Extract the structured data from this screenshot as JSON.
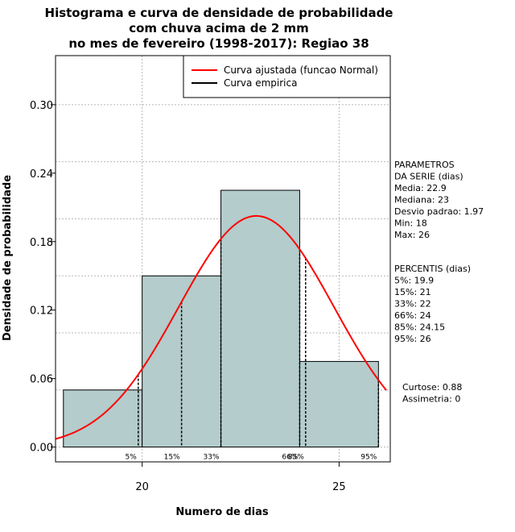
{
  "chart_data": {
    "type": "histogram",
    "title_lines": [
      "Histograma e curva de densidade de probabilidade",
      "com chuva acima de 2 mm",
      "no mes de fevereiro (1998-2017): Regiao 38"
    ],
    "xlabel": "Numero de dias",
    "ylabel": "Densidade de probabilidade",
    "xlim": [
      17.8,
      26.3
    ],
    "ylim": [
      -0.013,
      0.343
    ],
    "x_ticks": [
      20,
      25
    ],
    "y_ticks": [
      0.0,
      0.06,
      0.12,
      0.18,
      0.24,
      0.3
    ],
    "y_tick_labels": [
      "0.00",
      "0.06",
      "0.12",
      "0.18",
      "0.24",
      "0.30"
    ],
    "grid_y": [
      0.0,
      0.05,
      0.1,
      0.15,
      0.2,
      0.25,
      0.3
    ],
    "grid_x": [
      20,
      25
    ],
    "bins": [
      {
        "start": 18,
        "end": 20,
        "density": 0.05
      },
      {
        "start": 20,
        "end": 22,
        "density": 0.15
      },
      {
        "start": 22,
        "end": 24,
        "density": 0.225
      },
      {
        "start": 24,
        "end": 26,
        "density": 0.075
      }
    ],
    "bar_color": "#b4cccc",
    "normal_curve": {
      "mean": 22.9,
      "sd": 1.97,
      "color": "#ff0000"
    },
    "percentiles": [
      {
        "label": "5%",
        "value": 19.9
      },
      {
        "label": "15%",
        "value": 21
      },
      {
        "label": "33%",
        "value": 22
      },
      {
        "label": "66%",
        "value": 24
      },
      {
        "label": "85%",
        "value": 24.15
      },
      {
        "label": "95%",
        "value": 26
      }
    ],
    "legend": {
      "position": "top-right",
      "entries": [
        {
          "label": "Curva ajustada (funcao Normal)",
          "color": "#ff0000"
        },
        {
          "label": "Curva empirica",
          "color": "#000000"
        }
      ]
    }
  },
  "side_panel": {
    "params_lines": [
      "PARAMETROS",
      "DA SERIE (dias)",
      "  Media: 22.9",
      "  Mediana: 23",
      "  Desvio padrao: 1.97",
      "  Min: 18",
      "  Max: 26"
    ],
    "percentis_lines": [
      "PERCENTIS (dias)",
      "  5%: 19.9",
      "  15%: 21",
      "  33%: 22",
      "  66%: 24",
      "  85%: 24.15",
      "  95%: 26"
    ],
    "stats_lines": [
      "Curtose: 0.88",
      "  Assimetria: 0"
    ]
  }
}
